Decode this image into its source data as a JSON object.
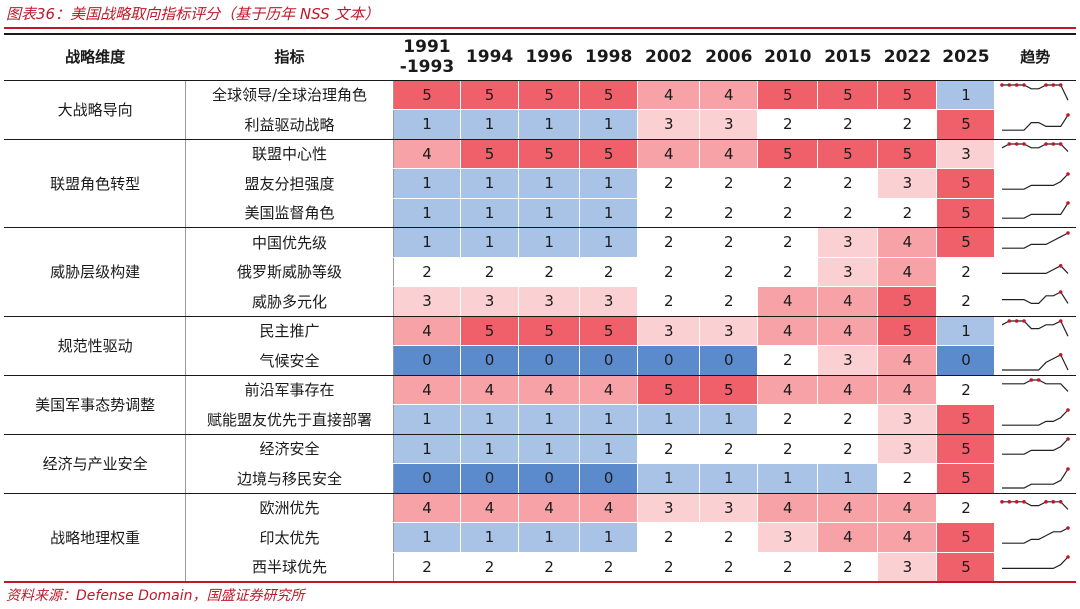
{
  "title": "图表36：美国战略取向指标评分（基于历年 NSS 文本）",
  "source": "资料来源：Defense Domain，国盛证券研究所",
  "headers": {
    "category": "战略维度",
    "indicator": "指标",
    "years": [
      "1991\n-1993",
      "1994",
      "1996",
      "1998",
      "2002",
      "2006",
      "2010",
      "2015",
      "2022",
      "2025"
    ],
    "trend": "趋势"
  },
  "colors": {
    "score_5": "#f0606a",
    "score_4": "#f6a2a6",
    "score_3": "#fad0d2",
    "score_2": "#ffffff",
    "score_1": "#a9c3e6",
    "score_0": "#5b8bcc",
    "accent": "#c0182a"
  },
  "groups": [
    {
      "name": "大战略导向",
      "rows": [
        {
          "indicator": "全球领导/全球治理角色",
          "values": [
            5,
            5,
            5,
            5,
            4,
            4,
            5,
            5,
            5,
            1
          ]
        },
        {
          "indicator": "利益驱动战略",
          "values": [
            1,
            1,
            1,
            1,
            3,
            3,
            2,
            2,
            2,
            5
          ]
        }
      ]
    },
    {
      "name": "联盟角色转型",
      "rows": [
        {
          "indicator": "联盟中心性",
          "values": [
            4,
            5,
            5,
            5,
            4,
            4,
            5,
            5,
            5,
            3
          ]
        },
        {
          "indicator": "盟友分担强度",
          "values": [
            1,
            1,
            1,
            1,
            2,
            2,
            2,
            2,
            3,
            5
          ]
        },
        {
          "indicator": "美国监督角色",
          "values": [
            1,
            1,
            1,
            1,
            2,
            2,
            2,
            2,
            2,
            5
          ]
        }
      ]
    },
    {
      "name": "威胁层级构建",
      "rows": [
        {
          "indicator": "中国优先级",
          "values": [
            1,
            1,
            1,
            1,
            2,
            2,
            2,
            3,
            4,
            5
          ]
        },
        {
          "indicator": "俄罗斯威胁等级",
          "values": [
            2,
            2,
            2,
            2,
            2,
            2,
            2,
            3,
            4,
            2
          ]
        },
        {
          "indicator": "威胁多元化",
          "values": [
            3,
            3,
            3,
            3,
            2,
            2,
            4,
            4,
            5,
            2
          ]
        }
      ]
    },
    {
      "name": "规范性驱动",
      "rows": [
        {
          "indicator": "民主推广",
          "values": [
            4,
            5,
            5,
            5,
            3,
            3,
            4,
            4,
            5,
            1
          ]
        },
        {
          "indicator": "气候安全",
          "values": [
            0,
            0,
            0,
            0,
            0,
            0,
            2,
            3,
            4,
            0
          ]
        }
      ]
    },
    {
      "name": "美国军事态势调整",
      "rows": [
        {
          "indicator": "前沿军事存在",
          "values": [
            4,
            4,
            4,
            4,
            5,
            5,
            4,
            4,
            4,
            2
          ]
        },
        {
          "indicator": "赋能盟友优先于直接部署",
          "values": [
            1,
            1,
            1,
            1,
            1,
            1,
            2,
            2,
            3,
            5
          ]
        }
      ]
    },
    {
      "name": "经济与产业安全",
      "rows": [
        {
          "indicator": "经济安全",
          "values": [
            1,
            1,
            1,
            1,
            2,
            2,
            2,
            2,
            3,
            5
          ]
        },
        {
          "indicator": "边境与移民安全",
          "values": [
            0,
            0,
            0,
            0,
            1,
            1,
            1,
            1,
            2,
            5
          ]
        }
      ]
    },
    {
      "name": "战略地理权重",
      "rows": [
        {
          "indicator": "欧洲优先",
          "values": [
            4,
            4,
            4,
            4,
            3,
            3,
            4,
            4,
            4,
            2
          ]
        },
        {
          "indicator": "印太优先",
          "values": [
            1,
            1,
            1,
            1,
            2,
            2,
            3,
            4,
            4,
            5
          ]
        },
        {
          "indicator": "西半球优先",
          "values": [
            2,
            2,
            2,
            2,
            2,
            2,
            2,
            2,
            3,
            5
          ]
        }
      ]
    }
  ]
}
